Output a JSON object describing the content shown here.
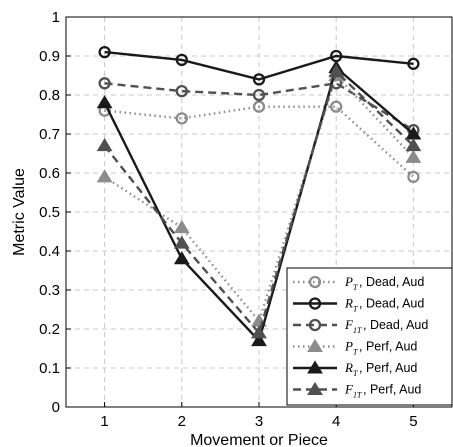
{
  "chart_data": {
    "type": "line",
    "xlabel": "Movement or Piece",
    "ylabel": "Metric Value",
    "xlim": [
      0.5,
      5.5
    ],
    "ylim": [
      0,
      1
    ],
    "x_ticks": [
      "1",
      "2",
      "3",
      "4",
      "5"
    ],
    "y_ticks": [
      "0",
      "0.1",
      "0.2",
      "0.3",
      "0.4",
      "0.5",
      "0.6",
      "0.7",
      "0.8",
      "0.9",
      "1"
    ],
    "grid": true,
    "legend_position": "bottom-right",
    "x": [
      1,
      2,
      3,
      4,
      5
    ],
    "series": [
      {
        "sym": "P",
        "sub": "T",
        "rest": ", Dead, Aud",
        "color": "#8c8c8c",
        "dash": "dotted",
        "marker": "circle",
        "values": [
          0.76,
          0.74,
          0.77,
          0.77,
          0.59
        ]
      },
      {
        "sym": "R",
        "sub": "T",
        "rest": ", Dead, Aud",
        "color": "#1a1a1a",
        "dash": "solid",
        "marker": "circle",
        "values": [
          0.91,
          0.89,
          0.84,
          0.9,
          0.88
        ]
      },
      {
        "sym": "F",
        "sub": "1T",
        "rest": ", Dead, Aud",
        "color": "#505050",
        "dash": "dashed",
        "marker": "circle",
        "values": [
          0.83,
          0.81,
          0.8,
          0.83,
          0.71
        ]
      },
      {
        "sym": "P",
        "sub": "T",
        "rest": ", Perf, Aud",
        "color": "#8c8c8c",
        "dash": "dotted",
        "marker": "triangle",
        "values": [
          0.59,
          0.46,
          0.22,
          0.85,
          0.64
        ]
      },
      {
        "sym": "R",
        "sub": "T",
        "rest": ", Perf, Aud",
        "color": "#1a1a1a",
        "dash": "solid",
        "marker": "triangle",
        "values": [
          0.78,
          0.38,
          0.17,
          0.87,
          0.7
        ]
      },
      {
        "sym": "F",
        "sub": "1T",
        "rest": ", Perf, Aud",
        "color": "#505050",
        "dash": "dashed",
        "marker": "triangle",
        "values": [
          0.67,
          0.42,
          0.19,
          0.86,
          0.67
        ]
      }
    ]
  }
}
